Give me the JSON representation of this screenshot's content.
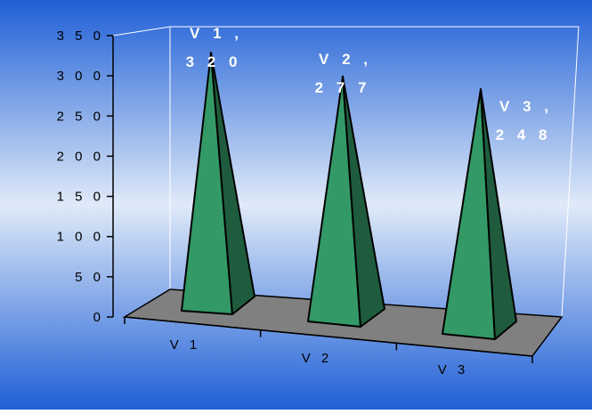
{
  "chart_data": {
    "type": "bar",
    "subtype": "3d-pyramid",
    "categories": [
      "V1",
      "V2",
      "V3"
    ],
    "values": [
      320,
      277,
      248
    ],
    "y_ticks": [
      0,
      50,
      100,
      150,
      200,
      250,
      300,
      350
    ],
    "ylim": [
      0,
      350
    ],
    "data_labels": [
      {
        "line1": "V 1 ,",
        "line2": "3 2 0"
      },
      {
        "line1": "V 2 ,",
        "line2": "2 7 7"
      },
      {
        "line1": "V 3 ,",
        "line2": "2 4 8"
      }
    ],
    "category_labels": [
      "V 1",
      "V 2",
      "V 3"
    ],
    "colors": {
      "background_top": "#1f5fd6",
      "background_mid": "#dfeaf8",
      "background_bottom": "#1f5fd6",
      "pyramid_front": "#339966",
      "pyramid_side": "#1f5c3d",
      "floor": "#808080"
    }
  }
}
